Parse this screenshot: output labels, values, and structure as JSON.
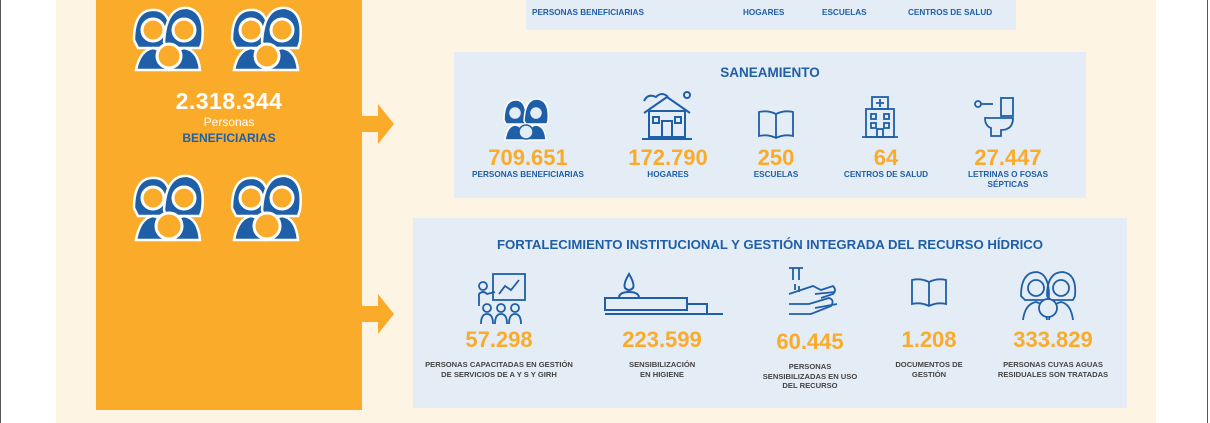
{
  "total": {
    "value": "2.318.344",
    "line1": "Personas",
    "line2": "BENEFICIARIAS"
  },
  "top_panel": {
    "labels": [
      "PERSONAS BENEFICIARIAS",
      "HOGARES",
      "ESCUELAS",
      "CENTROS DE SALUD"
    ]
  },
  "saneamiento": {
    "title": "SANEAMIENTO",
    "stats": [
      {
        "value": "709.651",
        "label": "PERSONAS BENEFICIARIAS",
        "icon": "people-icon"
      },
      {
        "value": "172.790",
        "label": "HOGARES",
        "icon": "house-icon"
      },
      {
        "value": "250",
        "label": "ESCUELAS",
        "icon": "book-icon"
      },
      {
        "value": "64",
        "label": "CENTROS DE SALUD",
        "icon": "hospital-icon"
      },
      {
        "value": "27.447",
        "label": "LETRINAS O FOSAS SÉPTICAS",
        "icon": "toilet-icon"
      }
    ]
  },
  "fortalecimiento": {
    "title": "FORTALECIMIENTO INSTITUCIONAL Y GESTIÓN INTEGRADA DEL RECURSO HÍDRICO",
    "stats": [
      {
        "value": "57.298",
        "label": "PERSONAS CAPACITADAS EN GESTIÓN DE SERVICIOS DE A Y S Y GIRH",
        "icon": "training-icon"
      },
      {
        "value": "223.599",
        "label": "SENSIBILIZACIÓN EN HIGIENE",
        "icon": "water-drop-icon"
      },
      {
        "value": "60.445",
        "label": "PERSONAS SENSIBILIZADAS EN USO DEL RECURSO",
        "icon": "handwash-icon"
      },
      {
        "value": "1.208",
        "label": "DOCUMENTOS DE GESTIÓN",
        "icon": "book-icon"
      },
      {
        "value": "333.829",
        "label": "PERSONAS CUYAS AGUAS RESIDUALES SON TRATADAS",
        "icon": "people-icon"
      }
    ]
  },
  "colors": {
    "orange": "#fbab2a",
    "blue": "#1f5fa8",
    "panel": "#e4ecf5",
    "cream": "#fef4e3"
  }
}
